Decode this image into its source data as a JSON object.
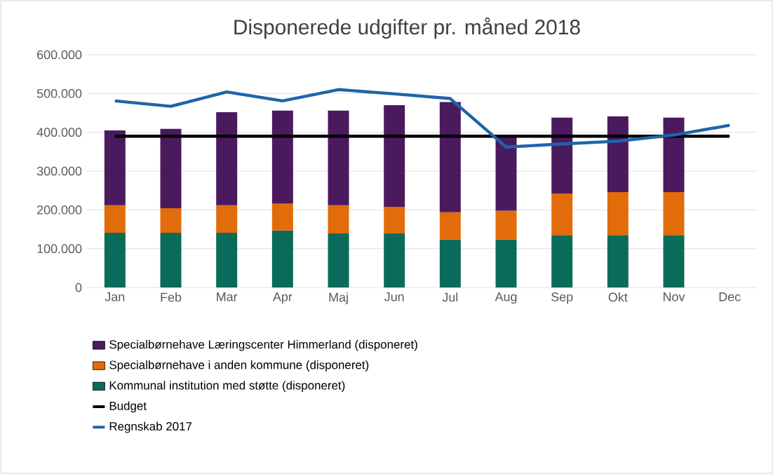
{
  "chart_data": {
    "type": "bar",
    "title": "Disponerede udgifter pr. måned 2018",
    "stacked": true,
    "grid": "y",
    "legend": "bottom",
    "categories": [
      "Jan",
      "Feb",
      "Mar",
      "Apr",
      "Maj",
      "Jun",
      "Jul",
      "Aug",
      "Sep",
      "Okt",
      "Nov",
      "Dec"
    ],
    "ylim": [
      0,
      600000
    ],
    "yticks": [
      {
        "value": 0,
        "label": "0"
      },
      {
        "value": 100000,
        "label": "100.000"
      },
      {
        "value": 200000,
        "label": "200.000"
      },
      {
        "value": 300000,
        "label": "300.000"
      },
      {
        "value": 400000,
        "label": "400.000"
      },
      {
        "value": 500000,
        "label": "500.000"
      },
      {
        "value": 600000,
        "label": "600.000"
      }
    ],
    "series": [
      {
        "name": "Kommunal institution med støtte (disponeret)",
        "color": "#0b6b5a",
        "values": [
          141000,
          141000,
          141000,
          147000,
          139000,
          139000,
          124000,
          124000,
          135000,
          135000,
          135000,
          null
        ]
      },
      {
        "name": "Specialbørnehave i anden kommune (disponeret)",
        "color": "#e36c0a",
        "values": [
          71000,
          63000,
          71000,
          69000,
          73000,
          69000,
          70000,
          74000,
          107000,
          111000,
          111000,
          null
        ]
      },
      {
        "name": "Specialbørnehave Læringscenter Himmerland (disponeret)",
        "color": "#4b1a5e",
        "values": [
          193000,
          205000,
          240000,
          240000,
          244000,
          262000,
          284000,
          196000,
          196000,
          195000,
          192000,
          null
        ]
      },
      {
        "name": "Budget",
        "type": "line",
        "color": "#000000",
        "values": [
          390000,
          390000,
          390000,
          390000,
          390000,
          390000,
          390000,
          390000,
          390000,
          390000,
          390000,
          390000
        ]
      },
      {
        "name": "Regnskab 2017",
        "type": "line",
        "color": "#1f64a8",
        "values": [
          481000,
          467000,
          504000,
          481000,
          510000,
          499000,
          487000,
          362000,
          370000,
          377000,
          393000,
          418000
        ]
      }
    ]
  }
}
